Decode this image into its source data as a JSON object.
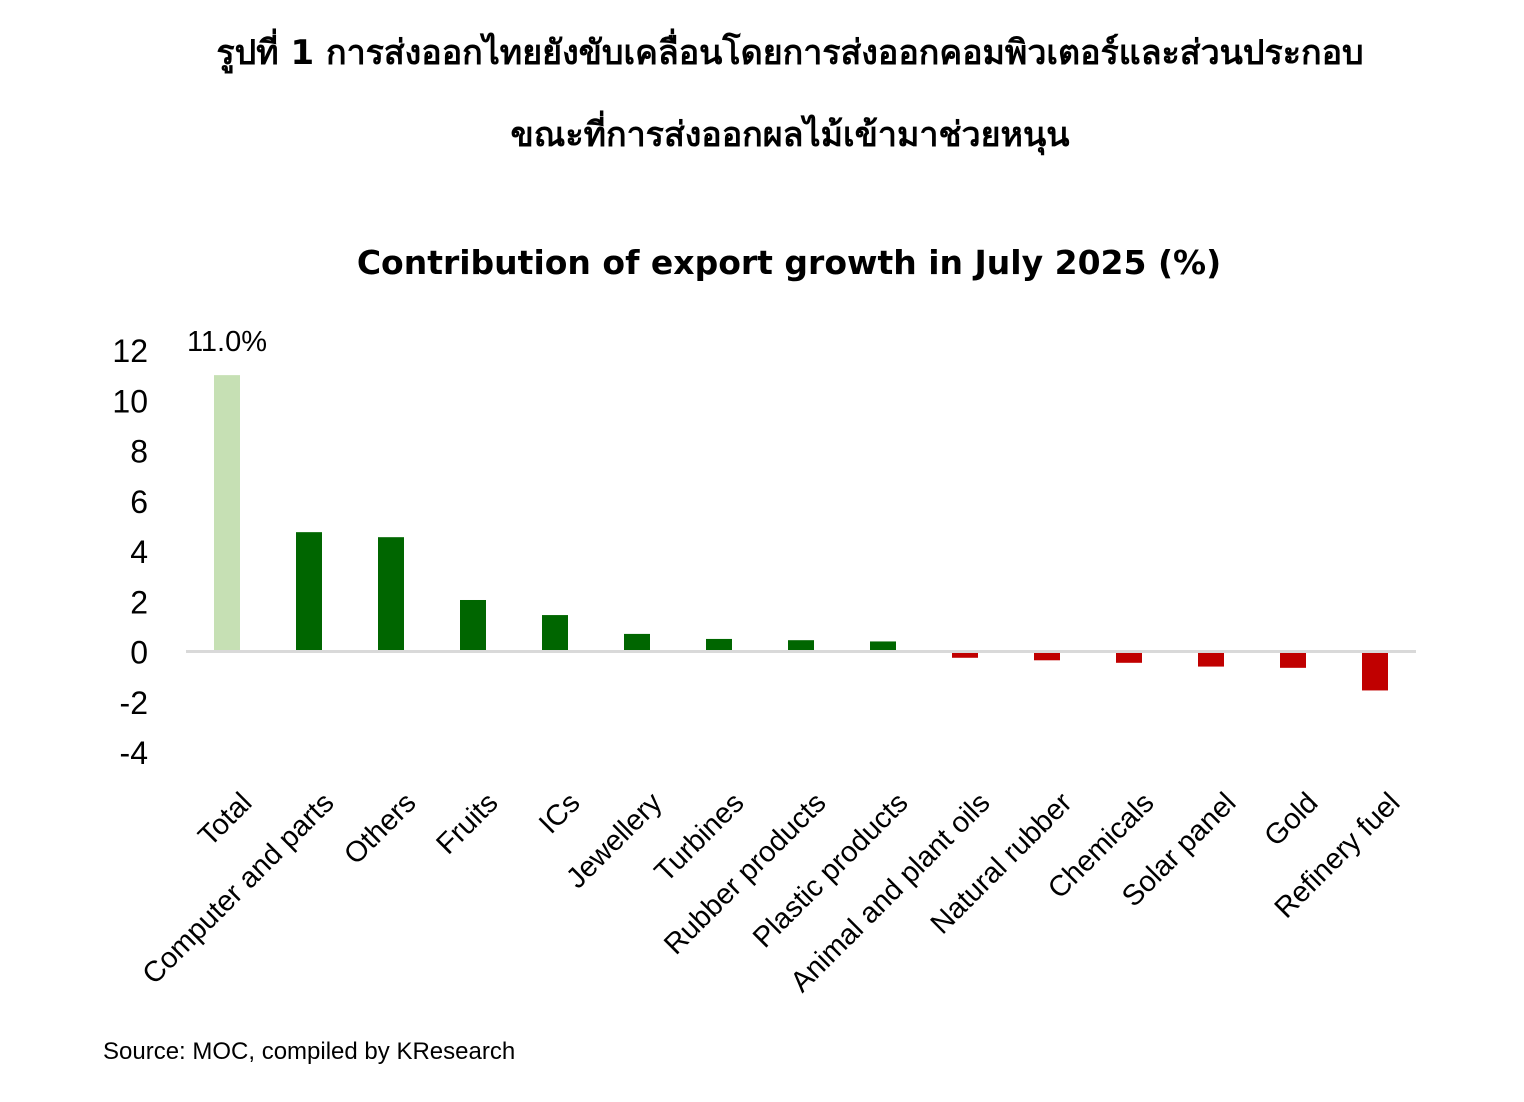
{
  "figure": {
    "title_line1": "รูปที่ 1 การส่งออกไทยยังขับเคลื่อนโดยการส่งออกคอมพิวเตอร์และส่วนประกอบ",
    "title_line2": "ขณะที่การส่งออกผลไม้เข้ามาช่วยหนุน",
    "source": "Source: MOC, compiled by KResearch"
  },
  "chart_data": {
    "type": "bar",
    "title": "Contribution of export growth in July 2025 (%)",
    "xlabel": "",
    "ylabel": "",
    "ylim": [
      -4,
      12
    ],
    "yticks": [
      12,
      10,
      8,
      6,
      4,
      2,
      0,
      -2,
      -4
    ],
    "grid": false,
    "legend": "none",
    "categories": [
      "Total",
      "Computer and parts",
      "Others",
      "Fruits",
      "ICs",
      "Jewellery",
      "Turbines",
      "Rubber products",
      "Plastic products",
      "Animal and plant oils",
      "Natural rubber",
      "Chemicals",
      "Solar panel",
      "Gold",
      "Refinery fuel"
    ],
    "values": [
      11.0,
      4.75,
      4.55,
      2.05,
      1.45,
      0.7,
      0.5,
      0.45,
      0.4,
      -0.25,
      -0.35,
      -0.45,
      -0.6,
      -0.65,
      -1.55
    ],
    "data_labels": [
      {
        "category": "Total",
        "text": "11.0%"
      }
    ],
    "colors": {
      "total": "#c6e0b4",
      "positive": "#006600",
      "negative": "#c00000",
      "axis": "#d9d9d9"
    }
  }
}
